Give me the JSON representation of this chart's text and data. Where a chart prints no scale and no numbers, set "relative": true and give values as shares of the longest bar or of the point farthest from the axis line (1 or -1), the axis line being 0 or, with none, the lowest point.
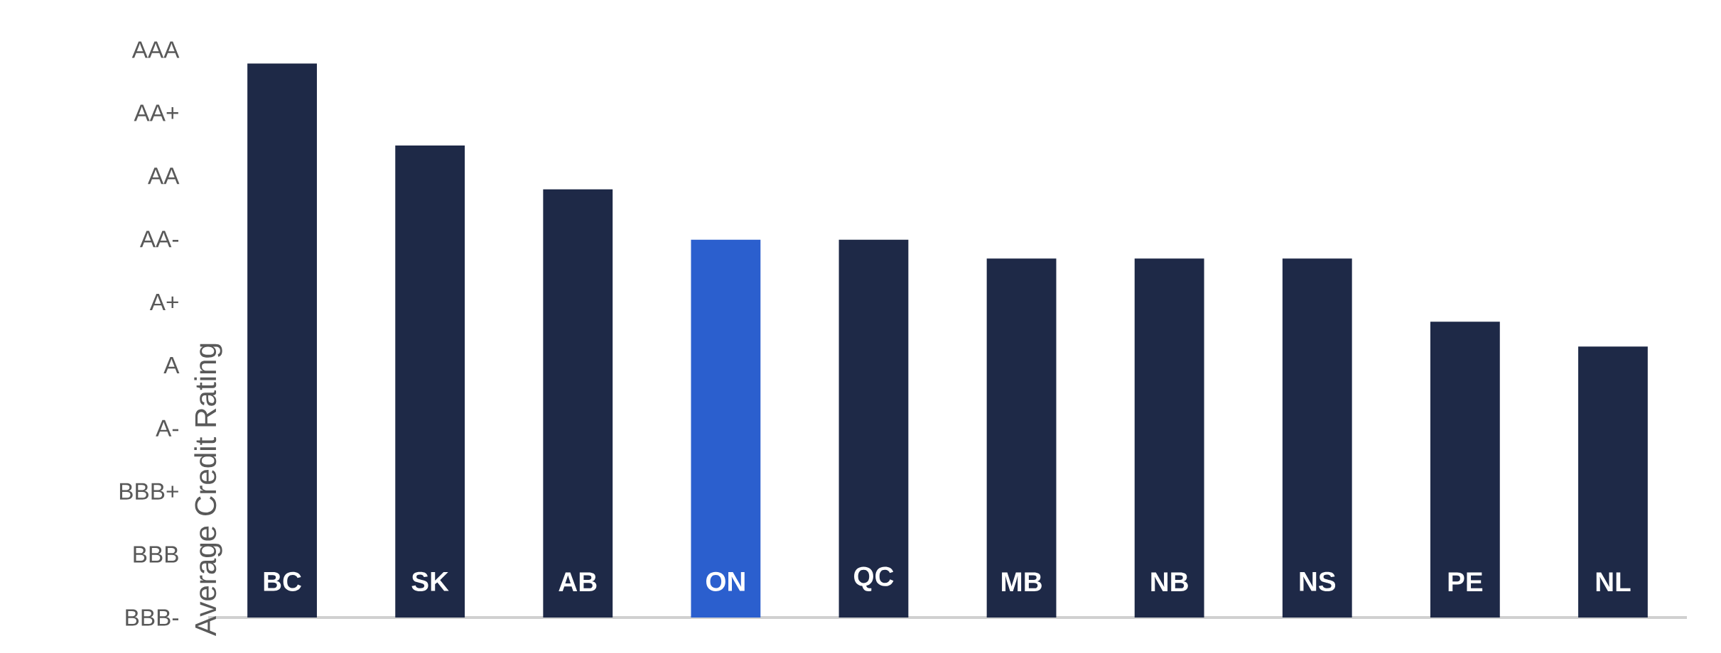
{
  "chart_data": {
    "type": "bar",
    "relative": true,
    "ylabel": "Average Credit Rating",
    "categories": [
      "BC",
      "SK",
      "AB",
      "ON",
      "QC",
      "MB",
      "NB",
      "NS",
      "PE",
      "NL"
    ],
    "values": [
      1,
      0.852,
      0.773,
      0.682,
      0.682,
      0.648,
      0.648,
      0.648,
      0.534,
      0.489
    ],
    "colors": [
      "#1e2947",
      "#1e2947",
      "#1e2947",
      "#2b5fce",
      "#1e2947",
      "#1e2947",
      "#1e2947",
      "#1e2947",
      "#1e2947",
      "#1e2947"
    ],
    "annotations": [
      "AAA",
      "AA+",
      "AA",
      "AA-",
      "A+",
      "A",
      "A-",
      "BBB+",
      "BBB",
      "BBB-"
    ]
  }
}
